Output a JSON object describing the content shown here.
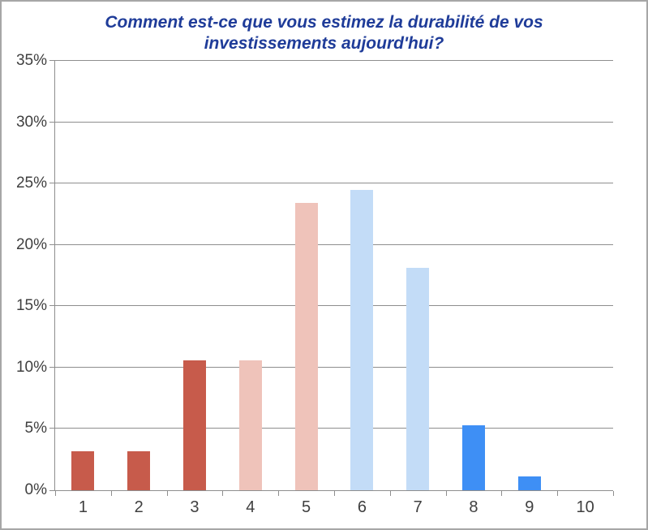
{
  "chart_data": {
    "type": "bar",
    "title": "Comment est-ce que vous estimez la durabilité de vos investissements aujourd'hui?",
    "title_lines": [
      "Comment est-ce que vous estimez la durabilité de vos",
      "investissements aujourd'hui?"
    ],
    "categories": [
      "1",
      "2",
      "3",
      "4",
      "5",
      "6",
      "7",
      "8",
      "9",
      "10"
    ],
    "values": [
      3.2,
      3.2,
      10.6,
      10.6,
      23.4,
      24.5,
      18.1,
      5.3,
      1.1,
      0
    ],
    "bar_colors": [
      "#c75b4b",
      "#c75b4b",
      "#c75b4b",
      "#efc3ba",
      "#efc3ba",
      "#c3dcf7",
      "#c3dcf7",
      "#3e8ff5",
      "#3e8ff5",
      "#3e8ff5"
    ],
    "xlabel": "",
    "ylabel": "",
    "ylim": [
      0,
      35
    ],
    "ytick_step": 5,
    "ytick_labels": [
      "0%",
      "5%",
      "10%",
      "15%",
      "20%",
      "25%",
      "30%",
      "35%"
    ],
    "grid": true,
    "legend_position": "none",
    "colors": {
      "title": "#1f3c99",
      "axis": "#8e8e8e",
      "gridline": "#8e8e8e",
      "tick_text": "#3f3f3f",
      "frame_border": "#a6a6a6",
      "background": "#ffffff"
    }
  }
}
